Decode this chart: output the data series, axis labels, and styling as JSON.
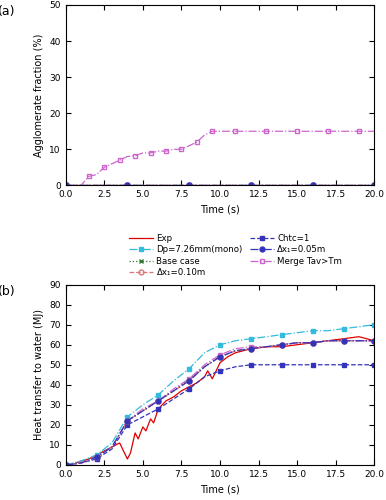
{
  "title_a": "(a)",
  "title_b": "(b)",
  "xlabel": "Time (s)",
  "ylabel_a": "Agglomerate fraction (%)",
  "ylabel_b": "Heat transfer to water (MJ)",
  "xlim": [
    0,
    20
  ],
  "ylim_a": [
    0,
    50
  ],
  "ylim_b": [
    0,
    90
  ],
  "yticks_a": [
    0,
    10,
    20,
    30,
    40,
    50
  ],
  "yticks_b": [
    0,
    10,
    20,
    30,
    40,
    50,
    60,
    70,
    80,
    90
  ],
  "legend_a": [
    {
      "label": "Exp",
      "color": "#dd0000",
      "ls": "-",
      "marker": null,
      "mfc": "#dd0000",
      "mec": "#dd0000"
    },
    {
      "label": "Dp=7.26mm(mono)",
      "color": "#33bbdd",
      "ls": "-.",
      "marker": "s",
      "mfc": "#33bbdd",
      "mec": "#33bbdd"
    },
    {
      "label": "Base case",
      "color": "#337733",
      "ls": ":",
      "marker": "x",
      "mfc": "#337733",
      "mec": "#337733"
    },
    {
      "label": "Δx₁=0.10m",
      "color": "#dd7777",
      "ls": "--",
      "marker": "o",
      "mfc": "none",
      "mec": "#dd7777"
    },
    {
      "label": "Chtc=1",
      "color": "#3333bb",
      "ls": "--",
      "marker": "s",
      "mfc": "#3333bb",
      "mec": "#3333bb"
    },
    {
      "label": "Δx₁=0.05m",
      "color": "#3333bb",
      "ls": "-.",
      "marker": "o",
      "mfc": "#3333bb",
      "mec": "#3333bb"
    },
    {
      "label": "Merge Tav>Tm",
      "color": "#cc66cc",
      "ls": "-.",
      "marker": "s",
      "mfc": "none",
      "mec": "#cc66cc"
    }
  ],
  "legend_b": [
    {
      "label": "Exp",
      "color": "#dd0000",
      "ls": "-",
      "marker": null,
      "mfc": "#dd0000",
      "mec": "#dd0000"
    },
    {
      "label": "Dp=7.26mm(mono)",
      "color": "#33bbdd",
      "ls": "-.",
      "marker": "s",
      "mfc": "#33bbdd",
      "mec": "#33bbdd"
    },
    {
      "label": "Base case",
      "color": "#337733",
      "ls": ":",
      "marker": "x",
      "mfc": "#337733",
      "mec": "#337733"
    },
    {
      "label": "Δx₁=0.10m",
      "color": "#dd7777",
      "ls": "--",
      "marker": "o",
      "mfc": "none",
      "mec": "#dd7777"
    },
    {
      "label": "Chtc=1",
      "color": "#3333bb",
      "ls": "--",
      "marker": "s",
      "mfc": "#3333bb",
      "mec": "#3333bb"
    },
    {
      "label": "Δx₁=0.05m",
      "color": "#3333bb",
      "ls": "-.",
      "marker": "o",
      "mfc": "#3333bb",
      "mec": "#3333bb"
    },
    {
      "label": "Merge Tav>Tm",
      "color": "#cc66cc",
      "ls": "-.",
      "marker": "s",
      "mfc": "none",
      "mec": "#cc66cc"
    }
  ],
  "subplot_a": {
    "series": [
      {
        "label": "Exp",
        "color": "#dd0000",
        "ls": "-",
        "marker": null,
        "mfc": "#dd0000",
        "x": [
          0,
          20
        ],
        "y": [
          0,
          0
        ]
      },
      {
        "label": "Base case",
        "color": "#337733",
        "ls": ":",
        "marker": "x",
        "mfc": "#337733",
        "x": [
          0,
          2,
          4,
          6,
          8,
          10,
          12,
          14,
          16,
          18,
          20
        ],
        "y": [
          0,
          0,
          0,
          0,
          0,
          0,
          0,
          0,
          0,
          0,
          0
        ]
      },
      {
        "label": "Chtc=1",
        "color": "#3333bb",
        "ls": "--",
        "marker": "s",
        "mfc": "#3333bb",
        "x": [
          0,
          2,
          4,
          6,
          8,
          10,
          12,
          14,
          16,
          18,
          20
        ],
        "y": [
          0,
          0,
          0,
          0,
          0,
          0,
          0,
          0,
          0,
          0,
          0
        ]
      },
      {
        "label": "Merge Tav>Tm",
        "color": "#cc66cc",
        "ls": "-.",
        "marker": "s",
        "mfc": "none",
        "x": [
          0,
          1,
          1.5,
          2,
          2.5,
          3,
          3.5,
          4,
          4.5,
          5,
          5.5,
          6,
          6.5,
          7,
          7.5,
          8,
          8.5,
          9,
          9.5,
          10,
          11,
          12,
          13,
          14,
          15,
          16,
          17,
          18,
          19,
          20
        ],
        "y": [
          0,
          0,
          2.5,
          3.0,
          5.0,
          6.0,
          7.0,
          8.0,
          8.2,
          9.0,
          9.0,
          9.5,
          9.5,
          10.0,
          10.0,
          11.0,
          12.0,
          14.0,
          15.0,
          15.0,
          15.0,
          15.0,
          15.0,
          15.0,
          15.0,
          15.0,
          15.0,
          15.0,
          15.0,
          15.0
        ]
      },
      {
        "label": "Dp=7.26mm(mono)",
        "color": "#33bbdd",
        "ls": "-.",
        "marker": "s",
        "mfc": "#33bbdd",
        "x": [
          0,
          2,
          4,
          6,
          8,
          10,
          12,
          14,
          16,
          18,
          20
        ],
        "y": [
          0,
          0,
          0,
          0,
          0,
          0,
          0,
          0,
          0,
          0,
          0
        ]
      },
      {
        "label": "Δx₁=0.10m",
        "color": "#dd7777",
        "ls": "--",
        "marker": "o",
        "mfc": "none",
        "x": [
          0,
          2,
          4,
          6,
          8,
          10,
          12,
          14,
          16,
          18,
          20
        ],
        "y": [
          0,
          0,
          0,
          0,
          0,
          0,
          0,
          0,
          0,
          0,
          0
        ]
      },
      {
        "label": "Δx₁=0.05m",
        "color": "#3333bb",
        "ls": "-.",
        "marker": "o",
        "mfc": "#3333bb",
        "x": [
          0,
          2,
          4,
          6,
          8,
          10,
          12,
          14,
          16,
          18,
          20
        ],
        "y": [
          0,
          0,
          0,
          0,
          0,
          0,
          0,
          0,
          0,
          0,
          0
        ]
      }
    ]
  },
  "subplot_b": {
    "series": [
      {
        "label": "Exp",
        "color": "#dd0000",
        "ls": "-",
        "marker": null,
        "mfc": "#dd0000",
        "x": [
          0,
          0.5,
          1,
          1.5,
          2,
          2.5,
          3,
          3.5,
          4.0,
          4.2,
          4.5,
          4.7,
          5.0,
          5.2,
          5.5,
          5.7,
          6,
          6.5,
          7,
          7.5,
          8,
          8.5,
          9,
          9.2,
          9.5,
          10,
          10.5,
          11,
          12,
          13,
          14,
          15,
          16,
          17,
          18,
          19,
          20
        ],
        "y": [
          0,
          0.5,
          2,
          3,
          5,
          7,
          9,
          11,
          3,
          6,
          16,
          13,
          19,
          17,
          23,
          21,
          28,
          32,
          34,
          37,
          39,
          41,
          44,
          47,
          43,
          51,
          54,
          56,
          58,
          59,
          59,
          60,
          61,
          62,
          63,
          64,
          62
        ]
      },
      {
        "label": "Base case",
        "color": "#337733",
        "ls": ":",
        "marker": "x",
        "mfc": "#337733",
        "x": [
          0,
          1,
          2,
          3,
          4,
          5,
          6,
          7,
          8,
          9,
          10,
          11,
          12,
          13,
          14,
          15,
          16,
          17,
          18,
          19,
          20
        ],
        "y": [
          0,
          1,
          4,
          9,
          22,
          27,
          32,
          37,
          43,
          49,
          54,
          57,
          58,
          59,
          60,
          61,
          61,
          62,
          62,
          62,
          62
        ]
      },
      {
        "label": "Chtc=1",
        "color": "#3333bb",
        "ls": "--",
        "marker": "s",
        "mfc": "#3333bb",
        "x": [
          0,
          1,
          2,
          3,
          4,
          5,
          6,
          7,
          8,
          9,
          10,
          11,
          12,
          13,
          14,
          15,
          16,
          17,
          18,
          19,
          20
        ],
        "y": [
          0,
          1,
          3,
          8,
          20,
          24,
          28,
          33,
          38,
          44,
          47,
          49,
          50,
          50,
          50,
          50,
          50,
          50,
          50,
          50,
          50
        ]
      },
      {
        "label": "Merge Tav>Tm",
        "color": "#cc66cc",
        "ls": "-.",
        "marker": "s",
        "mfc": "none",
        "x": [
          0,
          1,
          2,
          3,
          4,
          5,
          6,
          7,
          8,
          9,
          10,
          11,
          12,
          13,
          14,
          15,
          16,
          17,
          18,
          19,
          20
        ],
        "y": [
          0,
          1,
          4,
          9,
          22,
          28,
          32,
          38,
          43,
          50,
          55,
          58,
          59,
          59,
          60,
          61,
          61,
          62,
          62,
          62,
          62
        ]
      },
      {
        "label": "Dp=7.26mm(mono)",
        "color": "#33bbdd",
        "ls": "-.",
        "marker": "s",
        "mfc": "#33bbdd",
        "x": [
          0,
          1,
          2,
          3,
          4,
          5,
          6,
          7,
          8,
          9,
          10,
          11,
          12,
          13,
          14,
          15,
          16,
          17,
          18,
          19,
          20
        ],
        "y": [
          0,
          2,
          5,
          11,
          24,
          30,
          35,
          42,
          48,
          56,
          60,
          62,
          63,
          64,
          65,
          66,
          67,
          67,
          68,
          69,
          70
        ]
      },
      {
        "label": "Δx₁=0.10m",
        "color": "#dd7777",
        "ls": "--",
        "marker": "o",
        "mfc": "none",
        "x": [
          0,
          1,
          2,
          3,
          4,
          5,
          6,
          7,
          8,
          9,
          10,
          11,
          12,
          13,
          14,
          15,
          16,
          17,
          18,
          19,
          20
        ],
        "y": [
          0,
          1,
          4,
          9,
          22,
          27,
          32,
          37,
          42,
          49,
          54,
          57,
          58,
          59,
          60,
          61,
          61,
          62,
          62,
          62,
          62
        ]
      },
      {
        "label": "Δx₁=0.05m",
        "color": "#3333bb",
        "ls": "-.",
        "marker": "o",
        "mfc": "#3333bb",
        "x": [
          0,
          1,
          2,
          3,
          4,
          5,
          6,
          7,
          8,
          9,
          10,
          11,
          12,
          13,
          14,
          15,
          16,
          17,
          18,
          19,
          20
        ],
        "y": [
          0,
          1,
          4,
          9,
          22,
          27,
          32,
          37,
          42,
          49,
          54,
          57,
          58,
          59,
          60,
          61,
          61,
          62,
          62,
          62,
          62
        ]
      }
    ]
  }
}
